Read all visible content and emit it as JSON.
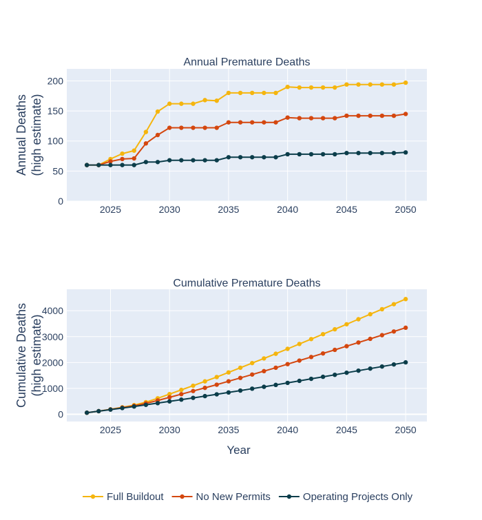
{
  "chart_data": [
    {
      "type": "line",
      "title": "Annual Premature Deaths",
      "xlabel": "",
      "ylabel_lines": [
        "Annual Deaths",
        "(high estimate)"
      ],
      "xlim": [
        2021.3,
        2051.8
      ],
      "ylim": [
        0,
        220
      ],
      "xticks": [
        2025,
        2030,
        2035,
        2040,
        2045,
        2050
      ],
      "yticks": [
        0,
        50,
        100,
        150,
        200
      ],
      "grid": true,
      "x": [
        2023,
        2024,
        2025,
        2026,
        2027,
        2028,
        2029,
        2030,
        2031,
        2032,
        2033,
        2034,
        2035,
        2036,
        2037,
        2038,
        2039,
        2040,
        2041,
        2042,
        2043,
        2044,
        2045,
        2046,
        2047,
        2048,
        2049,
        2050
      ],
      "series": [
        {
          "name": "Full Buildout",
          "color": "#f5b50e",
          "values": [
            60,
            60,
            70,
            79,
            84,
            115,
            149,
            162,
            162,
            162,
            168,
            167,
            180,
            180,
            180,
            180,
            180,
            190,
            189,
            189,
            189,
            189,
            194,
            194,
            194,
            194,
            194,
            197
          ]
        },
        {
          "name": "No New Permits",
          "color": "#d4470f",
          "values": [
            60,
            60,
            66,
            70,
            71,
            96,
            110,
            122,
            122,
            122,
            122,
            122,
            131,
            131,
            131,
            131,
            131,
            139,
            138,
            138,
            138,
            138,
            142,
            142,
            142,
            142,
            142,
            145
          ]
        },
        {
          "name": "Operating Projects Only",
          "color": "#0b3d4a",
          "values": [
            60,
            60,
            60,
            60,
            60,
            65,
            65,
            68,
            68,
            68,
            68,
            68,
            73,
            73,
            73,
            73,
            73,
            78,
            78,
            78,
            78,
            78,
            80,
            80,
            80,
            80,
            80,
            81
          ]
        }
      ]
    },
    {
      "type": "line",
      "title": "Cumulative Premature Deaths",
      "xlabel": "Year",
      "ylabel_lines": [
        "Cumulative Deaths",
        "(high estimate)"
      ],
      "xlim": [
        2021.3,
        2051.8
      ],
      "ylim": [
        -280,
        4830
      ],
      "xticks": [
        2025,
        2030,
        2035,
        2040,
        2045,
        2050
      ],
      "yticks": [
        0,
        1000,
        2000,
        3000,
        4000
      ],
      "grid": true,
      "x": [
        2023,
        2024,
        2025,
        2026,
        2027,
        2028,
        2029,
        2030,
        2031,
        2032,
        2033,
        2034,
        2035,
        2036,
        2037,
        2038,
        2039,
        2040,
        2041,
        2042,
        2043,
        2044,
        2045,
        2046,
        2047,
        2048,
        2049,
        2050
      ],
      "series": [
        {
          "name": "Full Buildout",
          "color": "#f5b50e",
          "values": [
            60,
            120,
            190,
            269,
            353,
            468,
            617,
            779,
            941,
            1103,
            1271,
            1438,
            1618,
            1798,
            1978,
            2158,
            2338,
            2528,
            2717,
            2906,
            3095,
            3284,
            3478,
            3672,
            3866,
            4060,
            4254,
            4451
          ]
        },
        {
          "name": "No New Permits",
          "color": "#d4470f",
          "values": [
            60,
            120,
            186,
            256,
            327,
            423,
            533,
            655,
            777,
            899,
            1021,
            1143,
            1274,
            1405,
            1536,
            1667,
            1798,
            1937,
            2075,
            2213,
            2351,
            2489,
            2631,
            2773,
            2915,
            3057,
            3199,
            3344
          ]
        },
        {
          "name": "Operating Projects Only",
          "color": "#0b3d4a",
          "values": [
            60,
            120,
            180,
            240,
            300,
            365,
            430,
            498,
            566,
            634,
            702,
            770,
            843,
            916,
            989,
            1062,
            1135,
            1213,
            1291,
            1369,
            1447,
            1525,
            1605,
            1685,
            1765,
            1845,
            1925,
            2006
          ]
        }
      ]
    }
  ],
  "legend": {
    "placement": "bottom",
    "items": [
      {
        "name": "Full Buildout",
        "color": "#f5b50e"
      },
      {
        "name": "No New Permits",
        "color": "#d4470f"
      },
      {
        "name": "Operating Projects Only",
        "color": "#0b3d4a"
      }
    ]
  }
}
